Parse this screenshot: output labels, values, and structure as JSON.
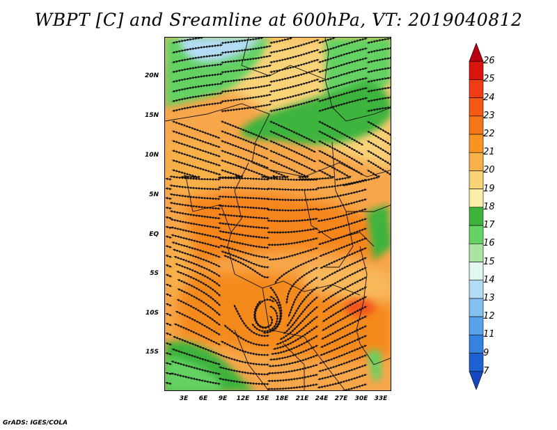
{
  "title": "WBPT [C] and Sreamline at 600hPa, VT: 2019040812",
  "footer": "GrADS: IGES/COLA",
  "map": {
    "lon_range": [
      0,
      34.5
    ],
    "lat_range": [
      -20,
      25
    ],
    "x_ticks": [
      "3E",
      "6E",
      "9E",
      "12E",
      "15E",
      "18E",
      "21E",
      "24E",
      "27E",
      "30E",
      "33E"
    ],
    "y_ticks": [
      "20N",
      "15N",
      "10N",
      "5N",
      "EQ",
      "5S",
      "10S",
      "15S"
    ]
  },
  "colorbar": {
    "labels": [
      "26",
      "25",
      "24",
      "23",
      "22",
      "21",
      "20",
      "19",
      "18",
      "17",
      "16",
      "15",
      "14",
      "13",
      "12",
      "11",
      "9",
      "7"
    ],
    "colors": [
      "#b8000e",
      "#d8140c",
      "#f03c14",
      "#f45a12",
      "#f6761a",
      "#f79422",
      "#f8b04a",
      "#fad278",
      "#fbeeaa",
      "#3cb43c",
      "#64d264",
      "#a8e6a0",
      "#e2f6f2",
      "#b4dcf6",
      "#82c0f0",
      "#5aa2ea",
      "#3682e0",
      "#1c62d2",
      "#1448c0"
    ]
  }
}
